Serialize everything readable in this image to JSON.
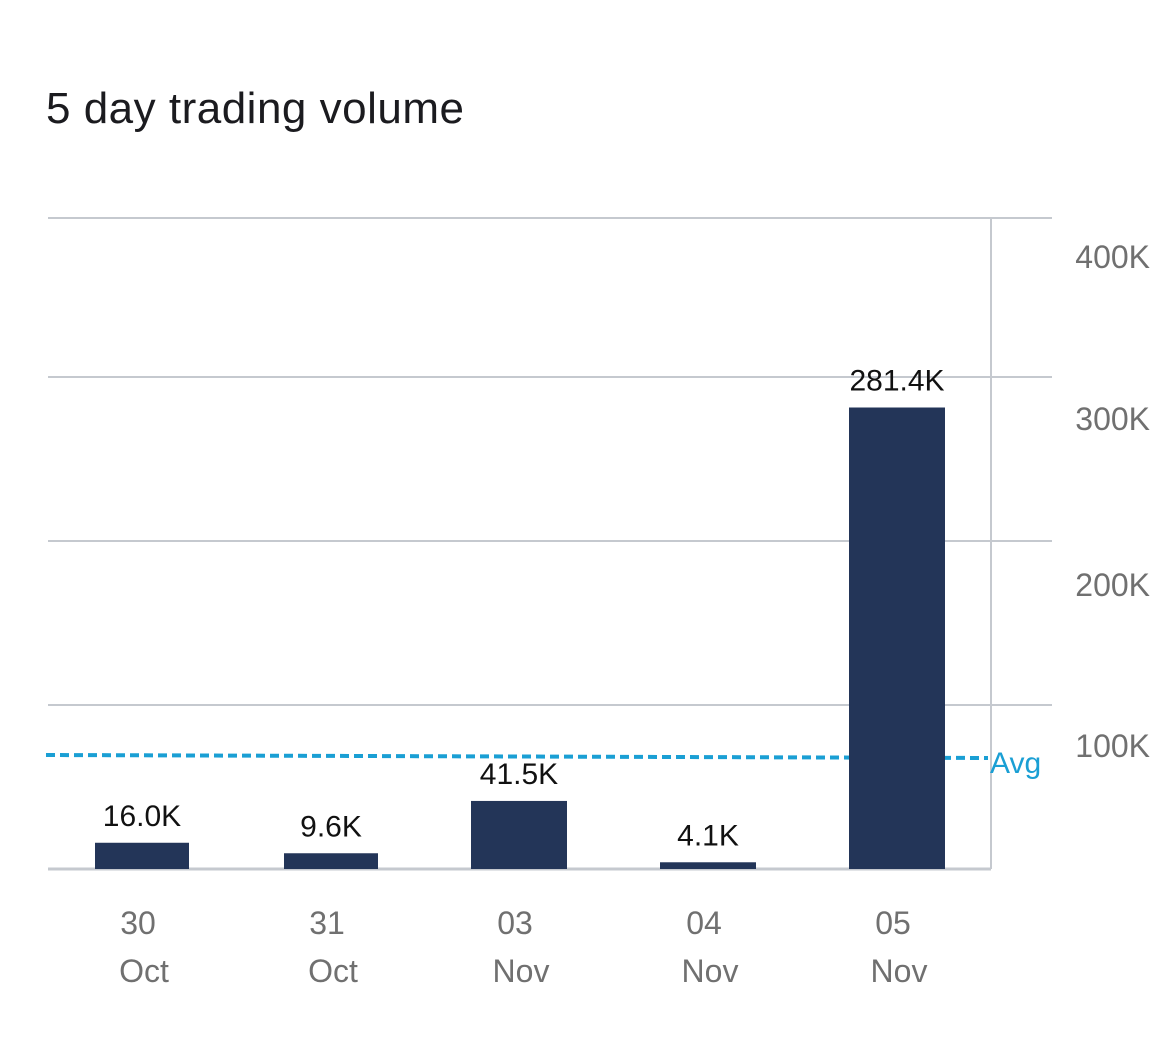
{
  "chart_data": {
    "type": "bar",
    "title": "5 day trading volume",
    "categories": [
      {
        "day": "30",
        "month": "Oct"
      },
      {
        "day": "31",
        "month": "Oct"
      },
      {
        "day": "03",
        "month": "Nov"
      },
      {
        "day": "04",
        "month": "Nov"
      },
      {
        "day": "05",
        "month": "Nov"
      }
    ],
    "values": [
      16000,
      9600,
      41500,
      4100,
      281400
    ],
    "value_labels": [
      "16.0K",
      "9.6K",
      "41.5K",
      "4.1K",
      "281.4K"
    ],
    "y_ticks": [
      {
        "value": 100000,
        "label": "100K"
      },
      {
        "value": 200000,
        "label": "200K"
      },
      {
        "value": 300000,
        "label": "300K"
      },
      {
        "value": 400000,
        "label": "400K"
      }
    ],
    "ylim": [
      0,
      400000
    ],
    "average": {
      "value": 70500,
      "label": "Avg"
    },
    "y_axis_position": "right",
    "grid": true
  },
  "colors": {
    "bar": "#233558",
    "average": "#1a9fd4",
    "grid": "#c5c9cf",
    "tick_text": "#707070"
  }
}
